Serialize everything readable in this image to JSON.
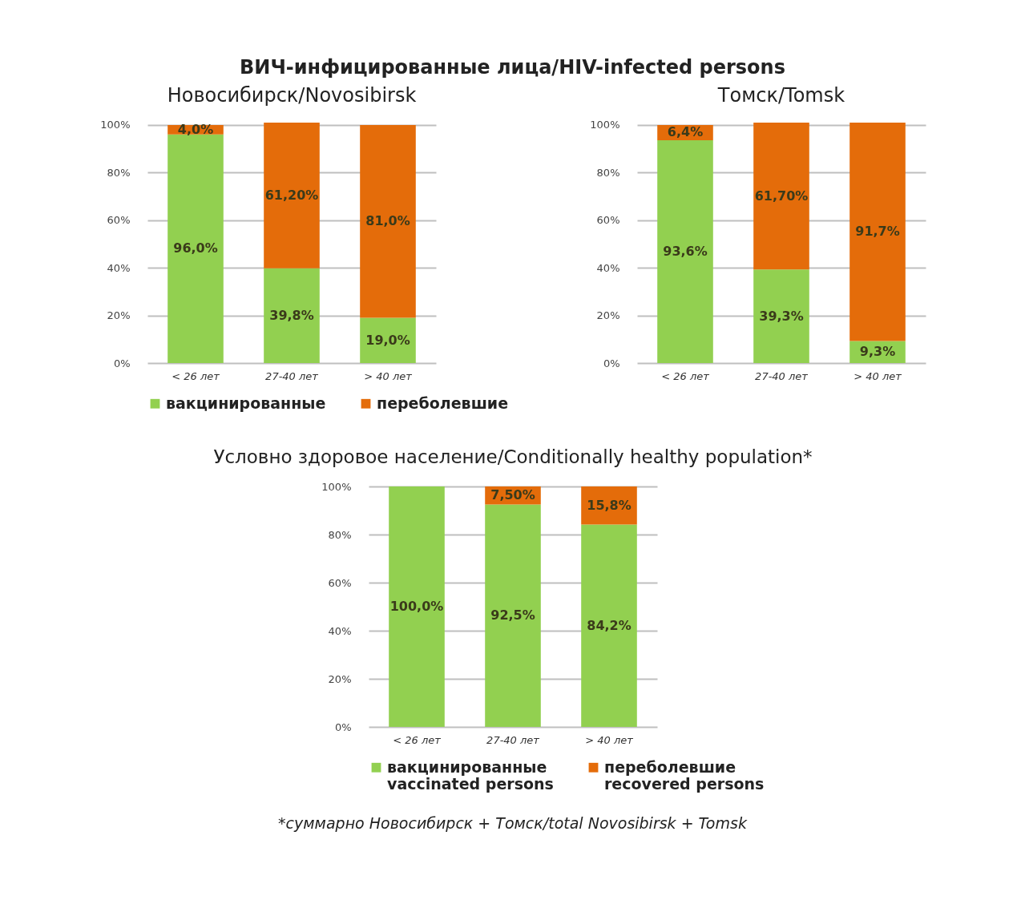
{
  "chart_data": [
    {
      "type": "bar",
      "title": "ВИЧ-инфицированные лица/HIV-infected persons",
      "subtitle": "Новосибирск/Novosibirsk",
      "categories": [
        "< 26 лет",
        "27-40 лет",
        "> 40 лет"
      ],
      "stacked": true,
      "ylim": [
        0,
        101
      ],
      "yticks": [
        {
          "value": 0,
          "label": "0%"
        },
        {
          "value": 20,
          "label": "20%"
        },
        {
          "value": 40,
          "label": "40%"
        },
        {
          "value": 60,
          "label": "60%"
        },
        {
          "value": 80,
          "label": "80%"
        },
        {
          "value": 100,
          "label": "100%"
        }
      ],
      "grid": "y",
      "legend": "bottom",
      "series": [
        {
          "name": "вакцинированные",
          "color": "#92d050",
          "values": [
            96.0,
            39.8,
            19.0
          ],
          "value_labels": [
            "96,0%",
            "39,8%",
            "19,0%"
          ]
        },
        {
          "name": "переболевшие",
          "color": "#e46c0a",
          "values": [
            4.0,
            61.2,
            81.0
          ],
          "value_labels": [
            "4,0%",
            "61,20%",
            "81,0%"
          ]
        }
      ]
    },
    {
      "type": "bar",
      "title": "Томск/Tomsk",
      "categories": [
        "< 26 лет",
        "27-40 лет",
        "> 40 лет"
      ],
      "stacked": true,
      "ylim": [
        0,
        101
      ],
      "yticks": [
        {
          "value": 0,
          "label": "0%"
        },
        {
          "value": 20,
          "label": "20%"
        },
        {
          "value": 40,
          "label": "40%"
        },
        {
          "value": 60,
          "label": "60%"
        },
        {
          "value": 80,
          "label": "80%"
        },
        {
          "value": 100,
          "label": "100%"
        }
      ],
      "grid": "y",
      "series": [
        {
          "color": "#92d050",
          "values": [
            93.6,
            39.3,
            9.3
          ],
          "value_labels": [
            "93,6%",
            "39,3%",
            "9,3%"
          ]
        },
        {
          "color": "#e46c0a",
          "values": [
            6.4,
            61.7,
            91.7
          ],
          "value_labels": [
            "6,4%",
            "61,70%",
            "91,7%"
          ]
        }
      ]
    },
    {
      "type": "bar",
      "title": "Условно здоровое население/Conditionally healthy population*",
      "categories": [
        "< 26 лет",
        "27-40 лет",
        "> 40 лет"
      ],
      "stacked": true,
      "ylim": [
        0,
        100
      ],
      "yticks": [
        {
          "value": 0,
          "label": "0%"
        },
        {
          "value": 20,
          "label": "20%"
        },
        {
          "value": 40,
          "label": "40%"
        },
        {
          "value": 60,
          "label": "60%"
        },
        {
          "value": 80,
          "label": "80%"
        },
        {
          "value": 100,
          "label": "100%"
        }
      ],
      "grid": "y",
      "legend": "bottom",
      "annotations": [
        "*суммарно Новосибирск + Томск/total Novosibirsk + Tomsk"
      ],
      "series": [
        {
          "name": "вакцинированные\nvaccinated persons",
          "color": "#92d050",
          "values": [
            100.0,
            92.5,
            84.2
          ],
          "value_labels": [
            "100,0%",
            "92,5%",
            "84,2%"
          ]
        },
        {
          "name": "переболевшие\nrecovered persons",
          "color": "#e46c0a",
          "values": [
            0,
            7.5,
            15.8
          ],
          "value_labels": [
            null,
            "7,50%",
            "15,8%"
          ]
        }
      ]
    }
  ]
}
